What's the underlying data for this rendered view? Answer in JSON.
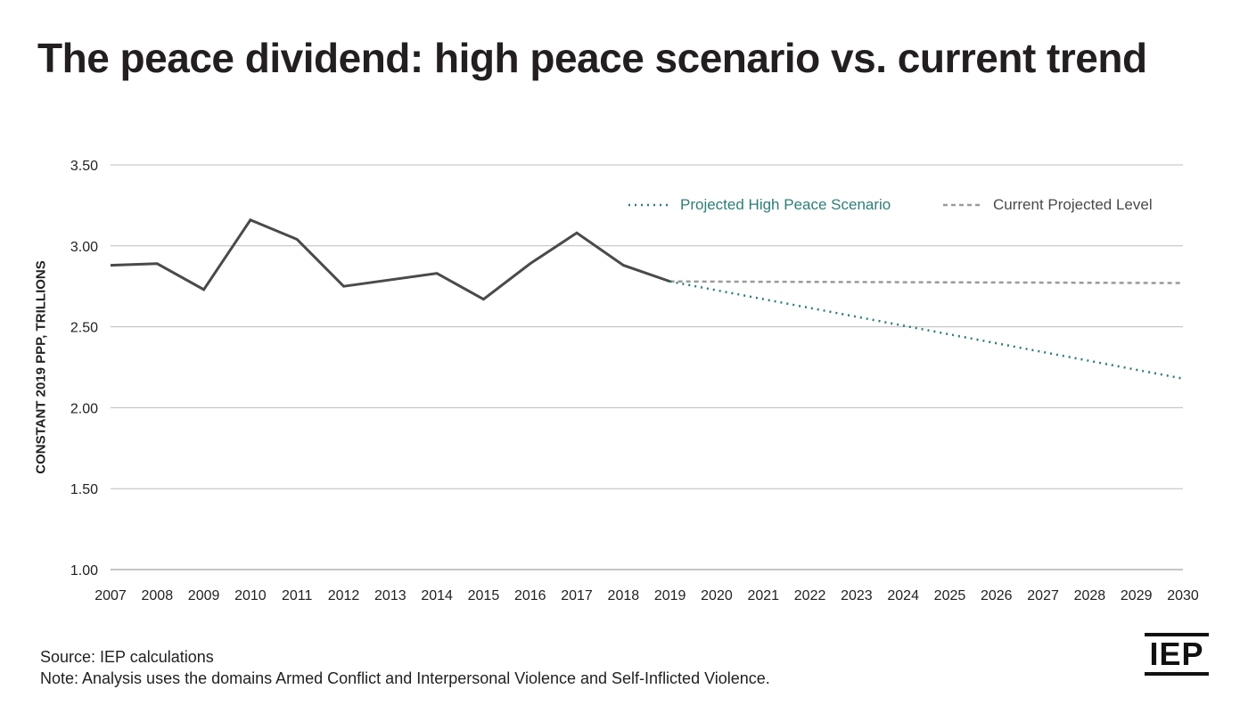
{
  "chart_data": {
    "type": "line",
    "title": "The peace dividend: high peace scenario vs. current trend",
    "xlabel": "",
    "ylabel": "CONSTANT 2019 PPP, TRILLIONS",
    "ylim": [
      1.0,
      3.5
    ],
    "yticks": [
      "1.00",
      "1.50",
      "2.00",
      "2.50",
      "3.00",
      "3.50"
    ],
    "x": [
      2007,
      2008,
      2009,
      2010,
      2011,
      2012,
      2013,
      2014,
      2015,
      2016,
      2017,
      2018,
      2019,
      2020,
      2021,
      2022,
      2023,
      2024,
      2025,
      2026,
      2027,
      2028,
      2029,
      2030
    ],
    "grid": "horizontal",
    "legend_placement": "top-right",
    "series": [
      {
        "key": "historical",
        "style": "solid",
        "color": "#4a4a4a",
        "x": [
          2007,
          2008,
          2009,
          2010,
          2011,
          2012,
          2013,
          2014,
          2015,
          2016,
          2017,
          2018,
          2019
        ],
        "values": [
          2.88,
          2.89,
          2.73,
          3.16,
          3.04,
          2.75,
          2.79,
          2.83,
          2.67,
          2.89,
          3.08,
          2.88,
          2.78
        ]
      },
      {
        "name": "Projected High Peace Scenario",
        "style": "dotted",
        "color": "#2e7d78",
        "x": [
          2019,
          2030
        ],
        "values": [
          2.78,
          2.18
        ]
      },
      {
        "name": "Current Projected Level",
        "style": "dashed",
        "color": "#9a9a9a",
        "x": [
          2019,
          2030
        ],
        "values": [
          2.78,
          2.77
        ]
      }
    ]
  },
  "footer": {
    "source": "Source: IEP calculations",
    "note": "Note: Analysis uses the domains Armed Conflict and Interpersonal Violence and Self-Inflicted Violence."
  },
  "logo": "IEP"
}
